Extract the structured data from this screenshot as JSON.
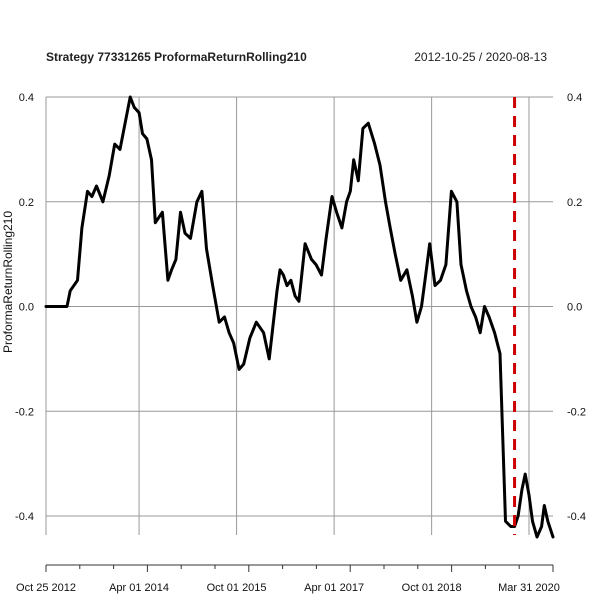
{
  "chart_data": {
    "type": "line",
    "title": "Strategy 77331265 ProformaReturnRolling210",
    "date_range": "2012-10-25 / 2020-08-13",
    "ylabel": "ProformaReturnRolling210",
    "ylim": [
      -0.45,
      0.4
    ],
    "y_ticks": [
      "0.4",
      "0.2",
      "0.0",
      "-0.2",
      "-0.4"
    ],
    "y_tick_values": [
      0.4,
      0.2,
      0.0,
      -0.2,
      -0.4
    ],
    "x_tick_labels": [
      "Oct 25 2012",
      "Apr 01 2014",
      "Oct 01 2015",
      "Apr 01 2017",
      "Oct 01 2018",
      "Mar 31 2020"
    ],
    "x_tick_dates": [
      "2012-10-25",
      "2014-04-01",
      "2015-10-01",
      "2017-04-01",
      "2018-10-01",
      "2020-03-31"
    ],
    "x_range": [
      "2012-10-25",
      "2020-08-13"
    ],
    "grid": true,
    "vline_date": "2020-01-10",
    "colors": {
      "line": "#000000",
      "vline": "#cc0000",
      "grid": "#999999"
    },
    "series": [
      {
        "x": [
          "2012-10-25",
          "2013-02-20",
          "2013-03-10",
          "2013-04-20",
          "2013-05-15",
          "2013-06-15",
          "2013-07-10",
          "2013-08-05",
          "2013-09-10",
          "2013-10-15",
          "2013-11-15",
          "2013-12-15",
          "2014-02-10",
          "2014-03-05",
          "2014-04-01",
          "2014-04-20",
          "2014-05-15",
          "2014-06-10",
          "2014-07-01",
          "2014-08-10",
          "2014-09-10",
          "2014-10-01",
          "2014-10-25",
          "2014-11-20",
          "2014-12-15",
          "2015-01-15",
          "2015-02-20",
          "2015-03-20",
          "2015-04-15",
          "2015-05-20",
          "2015-06-25",
          "2015-07-25",
          "2015-08-20",
          "2015-09-15",
          "2015-10-15",
          "2015-11-10",
          "2015-12-15",
          "2016-01-20",
          "2016-03-01",
          "2016-04-01",
          "2016-05-15",
          "2016-06-01",
          "2016-06-20",
          "2016-07-10",
          "2016-08-01",
          "2016-08-25",
          "2016-09-15",
          "2016-10-20",
          "2016-11-25",
          "2016-12-20",
          "2017-01-20",
          "2017-02-15",
          "2017-03-20",
          "2017-04-15",
          "2017-05-15",
          "2017-06-10",
          "2017-07-01",
          "2017-07-20",
          "2017-08-15",
          "2017-09-10",
          "2017-10-10",
          "2017-11-15",
          "2017-12-15",
          "2018-01-15",
          "2018-02-10",
          "2018-03-10",
          "2018-04-10",
          "2018-05-15",
          "2018-06-15",
          "2018-07-10",
          "2018-08-05",
          "2018-08-25",
          "2018-09-20",
          "2018-10-20",
          "2018-11-20",
          "2018-12-20",
          "2019-01-20",
          "2019-02-20",
          "2019-03-15",
          "2019-04-15",
          "2019-05-10",
          "2019-06-05",
          "2019-07-01",
          "2019-07-25",
          "2019-08-20",
          "2019-09-20",
          "2019-10-20",
          "2019-11-20",
          "2019-12-20",
          "2020-01-10",
          "2020-01-30",
          "2020-02-20",
          "2020-03-10",
          "2020-03-31",
          "2020-04-20",
          "2020-05-15",
          "2020-06-10",
          "2020-06-25",
          "2020-07-15",
          "2020-08-13"
        ],
        "y": [
          0.0,
          0.0,
          0.03,
          0.05,
          0.15,
          0.22,
          0.21,
          0.23,
          0.2,
          0.25,
          0.31,
          0.3,
          0.4,
          0.38,
          0.37,
          0.33,
          0.32,
          0.28,
          0.16,
          0.18,
          0.05,
          0.07,
          0.09,
          0.18,
          0.14,
          0.13,
          0.2,
          0.22,
          0.11,
          0.04,
          -0.03,
          -0.02,
          -0.05,
          -0.07,
          -0.12,
          -0.11,
          -0.06,
          -0.03,
          -0.05,
          -0.1,
          0.03,
          0.07,
          0.06,
          0.04,
          0.05,
          0.02,
          0.01,
          0.12,
          0.09,
          0.08,
          0.06,
          0.13,
          0.21,
          0.18,
          0.15,
          0.2,
          0.22,
          0.28,
          0.24,
          0.34,
          0.35,
          0.31,
          0.27,
          0.2,
          0.15,
          0.1,
          0.05,
          0.07,
          0.02,
          -0.03,
          0.0,
          0.05,
          0.12,
          0.04,
          0.05,
          0.08,
          0.22,
          0.2,
          0.08,
          0.03,
          0.0,
          -0.02,
          -0.05,
          0.0,
          -0.02,
          -0.05,
          -0.09,
          -0.41,
          -0.42,
          -0.42,
          -0.4,
          -0.35,
          -0.32,
          -0.36,
          -0.41,
          -0.44,
          -0.42,
          -0.38,
          -0.41,
          -0.44
        ]
      }
    ]
  }
}
